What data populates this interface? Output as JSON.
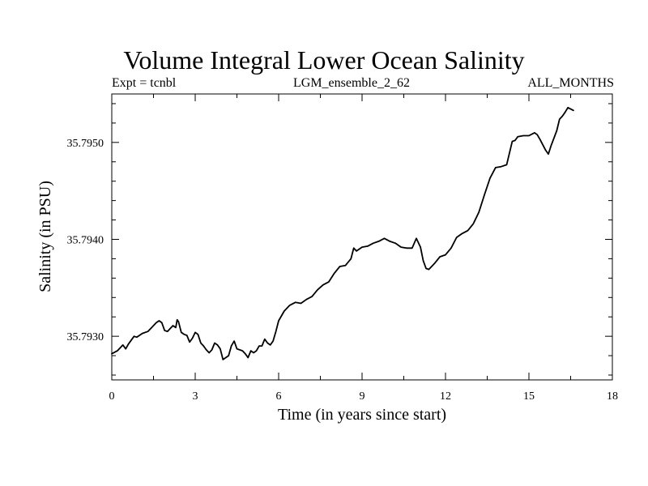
{
  "chart_data": {
    "type": "line",
    "title": "Volume Integral Lower Ocean Salinity",
    "subtitle_left": "Expt = tcnbl",
    "subtitle_center": "LGM_ensemble_2_62",
    "subtitle_right": "ALL_MONTHS",
    "xlabel": "Time (in years since start)",
    "ylabel": "Salinity (in PSU)",
    "xlim": [
      0,
      18
    ],
    "ylim": [
      35.79255,
      35.7955
    ],
    "xticks": [
      0,
      3,
      6,
      9,
      12,
      15,
      18
    ],
    "xtick_labels": [
      "0",
      "3",
      "6",
      "9",
      "12",
      "15",
      "18"
    ],
    "yticks": [
      35.793,
      35.794,
      35.795
    ],
    "ytick_labels": [
      "35.7930",
      "35.7940",
      "35.7950"
    ],
    "series": [
      {
        "name": "salinity",
        "color": "#000000",
        "x": [
          0.0,
          0.2,
          0.4,
          0.5,
          0.6,
          0.8,
          0.9,
          1.1,
          1.3,
          1.5,
          1.6,
          1.7,
          1.8,
          1.9,
          2.0,
          2.1,
          2.2,
          2.3,
          2.35,
          2.4,
          2.5,
          2.6,
          2.7,
          2.8,
          2.9,
          3.0,
          3.1,
          3.2,
          3.3,
          3.4,
          3.5,
          3.6,
          3.7,
          3.8,
          3.9,
          4.0,
          4.1,
          4.2,
          4.3,
          4.4,
          4.5,
          4.6,
          4.7,
          4.8,
          4.9,
          5.0,
          5.1,
          5.2,
          5.3,
          5.4,
          5.5,
          5.6,
          5.7,
          5.8,
          5.9,
          6.0,
          6.2,
          6.4,
          6.6,
          6.8,
          7.0,
          7.2,
          7.4,
          7.6,
          7.8,
          8.0,
          8.2,
          8.4,
          8.6,
          8.7,
          8.8,
          9.0,
          9.2,
          9.4,
          9.6,
          9.8,
          10.0,
          10.2,
          10.4,
          10.6,
          10.8,
          10.95,
          11.1,
          11.2,
          11.3,
          11.4,
          11.6,
          11.8,
          12.0,
          12.2,
          12.4,
          12.6,
          12.8,
          13.0,
          13.2,
          13.4,
          13.6,
          13.8,
          14.0,
          14.2,
          14.4,
          14.5,
          14.6,
          14.8,
          15.0,
          15.2,
          15.3,
          15.4,
          15.6,
          15.7,
          15.8,
          16.0,
          16.1,
          16.2,
          16.3,
          16.4,
          16.6
        ],
        "y": [
          35.79282,
          35.79285,
          35.79291,
          35.79287,
          35.79292,
          35.793,
          35.79299,
          35.79303,
          35.79305,
          35.79311,
          35.79314,
          35.79316,
          35.79314,
          35.79306,
          35.79305,
          35.79308,
          35.79311,
          35.79309,
          35.79317,
          35.79315,
          35.79304,
          35.79302,
          35.79301,
          35.79294,
          35.79298,
          35.79304,
          35.79302,
          35.79293,
          35.7929,
          35.79286,
          35.79283,
          35.79286,
          35.79293,
          35.79291,
          35.79287,
          35.79276,
          35.79278,
          35.7928,
          35.7929,
          35.79295,
          35.79287,
          35.79286,
          35.79285,
          35.79282,
          35.79278,
          35.79285,
          35.79283,
          35.79285,
          35.7929,
          35.7929,
          35.79297,
          35.79293,
          35.79291,
          35.79295,
          35.79305,
          35.79316,
          35.79326,
          35.79332,
          35.79335,
          35.79334,
          35.79338,
          35.79341,
          35.79348,
          35.79353,
          35.79356,
          35.79365,
          35.79372,
          35.79373,
          35.7938,
          35.79391,
          35.79388,
          35.79392,
          35.79393,
          35.79396,
          35.79398,
          35.79401,
          35.79398,
          35.79396,
          35.79392,
          35.79391,
          35.79391,
          35.79401,
          35.79392,
          35.79378,
          35.7937,
          35.79369,
          35.79375,
          35.79382,
          35.79384,
          35.79391,
          35.79402,
          35.79406,
          35.79409,
          35.79416,
          35.79428,
          35.79446,
          35.79463,
          35.79474,
          35.79475,
          35.79477,
          35.79501,
          35.79502,
          35.79506,
          35.79507,
          35.79507,
          35.7951,
          35.79508,
          35.79503,
          35.79492,
          35.79488,
          35.79497,
          35.79512,
          35.79524,
          35.79527,
          35.79531,
          35.79536,
          35.79533
        ]
      }
    ]
  }
}
